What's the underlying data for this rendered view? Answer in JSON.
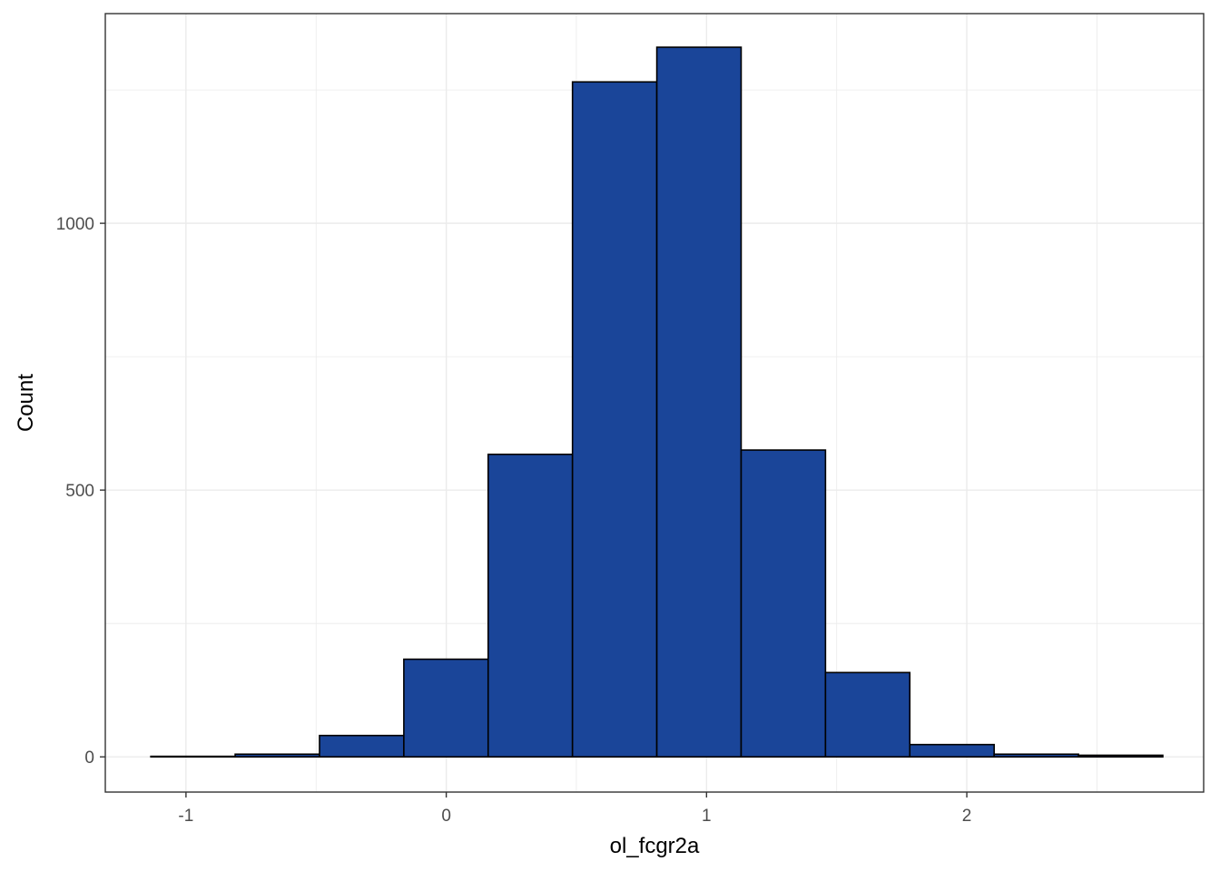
{
  "chart_data": {
    "type": "bar",
    "subtype": "histogram",
    "xlabel": "ol_fcgr2a",
    "ylabel": "Count",
    "x_ticks": [
      -1,
      0,
      1,
      2
    ],
    "y_ticks": [
      0,
      500,
      1000
    ],
    "xlim": [
      -1.31,
      2.91
    ],
    "ylim": [
      -66,
      1393
    ],
    "grid": true,
    "bin_edges": [
      -1.135,
      -0.811,
      -0.487,
      -0.163,
      0.161,
      0.485,
      0.809,
      1.133,
      1.457,
      1.781,
      2.105,
      2.429,
      2.753
    ],
    "values": [
      1,
      5,
      40,
      183,
      567,
      1265,
      1330,
      575,
      158,
      23,
      5,
      3
    ],
    "colors": {
      "fill": "#1A4599",
      "outline": "#000000",
      "grid": "#EBEBEB",
      "panel_border": "#333333"
    }
  }
}
